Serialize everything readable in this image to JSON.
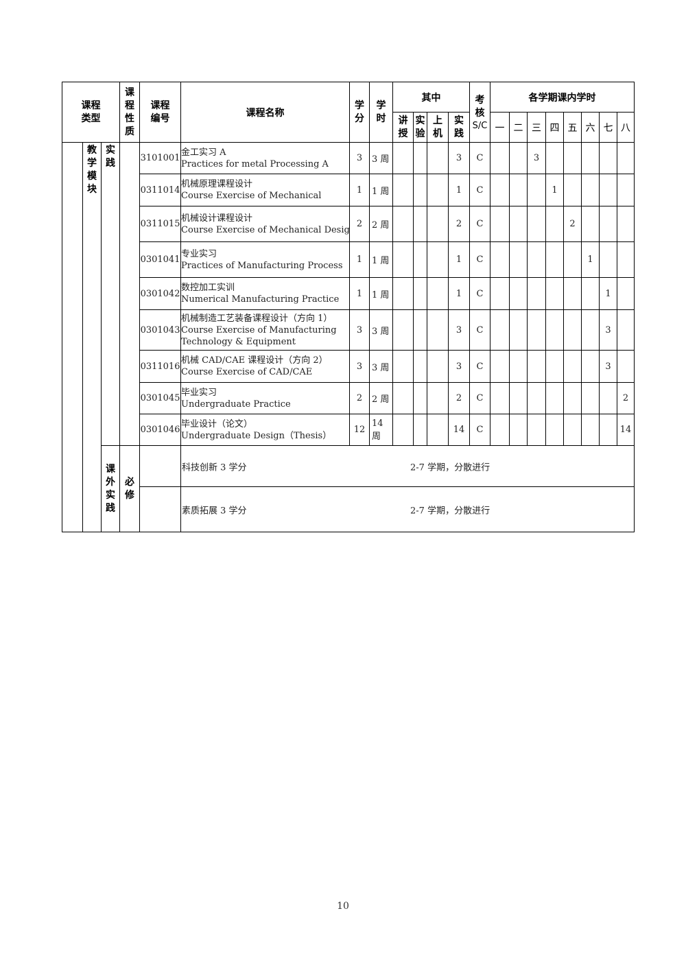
{
  "header": {
    "course_type": "课程类型",
    "course_nature": "课程性质",
    "course_code": "课程编号",
    "course_name": "课程名称",
    "credit": "学分",
    "hours": "学时",
    "of_which": "其中",
    "of_which_cols": [
      "讲授",
      "实验",
      "上机",
      "实践"
    ],
    "exam": "考核",
    "exam_sub": "S/C",
    "semester_group": "各学期课内学时",
    "semesters": [
      "一",
      "二",
      "三",
      "四",
      "五",
      "六",
      "七",
      "八"
    ]
  },
  "groups": {
    "module": "教学模块",
    "practice": "实践",
    "extra": "课外实践",
    "required": "必修"
  },
  "rows": [
    {
      "code": "3101001",
      "cn": "金工实习 A",
      "en": "Practices for metal Processing A",
      "en2": "",
      "credit": "3",
      "hours": "3 周",
      "lecture": "",
      "lab": "",
      "computer": "",
      "practice": "3",
      "exam": "C",
      "sem": [
        "",
        "",
        "3",
        "",
        "",
        "",
        "",
        ""
      ]
    },
    {
      "code": "0311014",
      "cn": "机械原理课程设计",
      "en": "Course Exercise of Mechanical",
      "en2": "",
      "credit": "1",
      "hours": "1 周",
      "lecture": "",
      "lab": "",
      "computer": "",
      "practice": "1",
      "exam": "C",
      "sem": [
        "",
        "",
        "",
        "1",
        "",
        "",
        "",
        ""
      ]
    },
    {
      "code": "0311015",
      "cn": "机械设计课程设计",
      "en": "Course Exercise of Mechanical Design",
      "en2": "",
      "credit": "2",
      "hours": "2 周",
      "lecture": "",
      "lab": "",
      "computer": "",
      "practice": "2",
      "exam": "C",
      "sem": [
        "",
        "",
        "",
        "",
        "2",
        "",
        "",
        ""
      ]
    },
    {
      "code": "0301041",
      "cn": "专业实习",
      "en": "Practices of Manufacturing Process",
      "en2": "",
      "credit": "1",
      "hours": "1 周",
      "lecture": "",
      "lab": "",
      "computer": "",
      "practice": "1",
      "exam": "C",
      "sem": [
        "",
        "",
        "",
        "",
        "",
        "1",
        "",
        ""
      ]
    },
    {
      "code": "0301042",
      "cn": "数控加工实训",
      "en": "Numerical Manufacturing Practice",
      "en2": "",
      "credit": "1",
      "hours": "1 周",
      "lecture": "",
      "lab": "",
      "computer": "",
      "practice": "1",
      "exam": "C",
      "sem": [
        "",
        "",
        "",
        "",
        "",
        "",
        "1",
        ""
      ]
    },
    {
      "code": "0301043",
      "cn": "机械制造工艺装备课程设计（方向 1）",
      "en": "Course Exercise of Manufacturing",
      "en2": "Technology & Equipment",
      "credit": "3",
      "hours": "3 周",
      "lecture": "",
      "lab": "",
      "computer": "",
      "practice": "3",
      "exam": "C",
      "sem": [
        "",
        "",
        "",
        "",
        "",
        "",
        "3",
        ""
      ]
    },
    {
      "code": "0311016",
      "cn": "机械 CAD/CAE 课程设计（方向 2）",
      "en": "Course Exercise of CAD/CAE",
      "en2": "",
      "credit": "3",
      "hours": "3 周",
      "lecture": "",
      "lab": "",
      "computer": "",
      "practice": "3",
      "exam": "C",
      "sem": [
        "",
        "",
        "",
        "",
        "",
        "",
        "3",
        ""
      ]
    },
    {
      "code": "0301045",
      "cn": "毕业实习",
      "en": "Undergraduate Practice",
      "en2": "",
      "credit": "2",
      "hours": "2 周",
      "lecture": "",
      "lab": "",
      "computer": "",
      "practice": "2",
      "exam": "C",
      "sem": [
        "",
        "",
        "",
        "",
        "",
        "",
        "",
        "2"
      ]
    },
    {
      "code": "0301046",
      "cn": "毕业设计（论文）",
      "en": "Undergraduate Design（Thesis）",
      "en2": "",
      "credit": "12",
      "hours": "14 周",
      "lecture": "",
      "lab": "",
      "computer": "",
      "practice": "14",
      "exam": "C",
      "sem": [
        "",
        "",
        "",
        "",
        "",
        "",
        "",
        "14"
      ]
    }
  ],
  "extra_rows": [
    {
      "name": "科技创新 3 学分",
      "note": "2-7 学期，分散进行"
    },
    {
      "name": "素质拓展 3 学分",
      "note": "2-7 学期，分散进行"
    }
  ],
  "page_number": "10"
}
